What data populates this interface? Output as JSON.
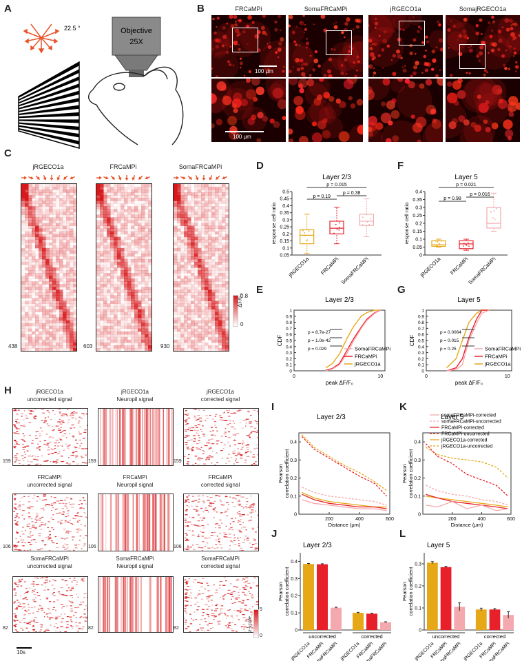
{
  "panels": {
    "A": "A",
    "B": "B",
    "C": "C",
    "D": "D",
    "E": "E",
    "F": "F",
    "G": "G",
    "H": "H",
    "I": "I",
    "J": "J",
    "K": "K",
    "L": "L"
  },
  "panelA": {
    "angle": "22.5 °",
    "objective_line1": "Objective",
    "objective_line2": "25X"
  },
  "panelB": {
    "labels": [
      "FRCaMPi",
      "SomaFRCaMPi",
      "jRGECO1a",
      "SomajRGECO1a"
    ],
    "scale_top": "100 μm",
    "scale_bottom": "100 μm"
  },
  "panelC": {
    "titles": [
      "jRGECO1a",
      "FRCaMPi",
      "SomaFRCaMPi"
    ],
    "counts": [
      "438",
      "603",
      "930"
    ],
    "colorbar_max": "0.8",
    "colorbar_min": "0",
    "colorbar_label": "ΔF/F₀"
  },
  "panelD": {
    "title": "Layer 2/3",
    "ylabel": "response cell ratio",
    "yticks": [
      "0.5",
      "0.45",
      "0.4",
      "0.35",
      "0.3",
      "0.25",
      "0.2",
      "0.15",
      "0.1",
      "0.05"
    ],
    "xlabels": [
      "jRGECO1a",
      "FRCaMPi",
      "SomaFRCaMPi"
    ],
    "pvals": [
      "p = 0.015",
      "p = 0.19",
      "p = 0.38"
    ]
  },
  "panelF": {
    "title": "Layer 5",
    "ylabel": "response cell ratio",
    "yticks": [
      "0.4",
      "0.35",
      "0.3",
      "0.25",
      "0.2",
      "0.15",
      "0.1",
      "0.05",
      "0"
    ],
    "xlabels": [
      "jRGECO1a",
      "FRCaMPi",
      "SomaFRCaMPi"
    ],
    "pvals": [
      "p = 0.021",
      "p = 0.98",
      "p = 0.016"
    ]
  },
  "panelE": {
    "title": "Layer 2/3",
    "ylabel": "CDF",
    "xlabel": "peak ΔF/F₀",
    "yticks": [
      "1",
      "0.9",
      "0.8",
      "0.7",
      "0.6",
      "0.5",
      "0.4",
      "0.3",
      "0.2",
      "0.1",
      "0"
    ],
    "xticks": [
      "0",
      "10"
    ],
    "pvals": [
      "p = 8.7e-27",
      "p = 1.0e-42",
      "p = 0.029"
    ],
    "legend": [
      "SomaFRCaMPi",
      "FRCaMPi",
      "jRGECO1a"
    ]
  },
  "panelG": {
    "title": "Layer 5",
    "ylabel": "CDF",
    "xlabel": "peak ΔF/F₀",
    "yticks": [
      "1",
      "0.9",
      "0.8",
      "0.7",
      "0.6",
      "0.5",
      "0.4",
      "0.3",
      "0.2",
      "0.1",
      "0"
    ],
    "xticks": [
      "0",
      "10"
    ],
    "pvals": [
      "p = 0.0064",
      "p = 0.015",
      "p = 0.25"
    ],
    "legend": [
      "SomaFRCaMPi",
      "FRCaMPi",
      "jRGECO1a"
    ]
  },
  "panelH": {
    "rows": [
      {
        "name": "jRGECO1a",
        "count": "159"
      },
      {
        "name": "FRCaMPi",
        "count": "106"
      },
      {
        "name": "SomaFRCaMPi",
        "count": "82"
      }
    ],
    "col_labels": [
      "uncorrected signal",
      "Neuropil signal",
      "corrected signal"
    ],
    "time_scale": "10s",
    "colorbar_max": "5",
    "colorbar_min": "0",
    "colorbar_label": "z-score"
  },
  "panelI": {
    "title": "Layer 2/3",
    "ylabel_line1": "Pearson",
    "ylabel_line2": "correlation coefficient",
    "xlabel": "Distance (μm)",
    "yticks": [
      "0.4",
      "0.3",
      "0.2",
      "0.1",
      "0"
    ],
    "xticks": [
      "200",
      "400",
      "600"
    ]
  },
  "panelK": {
    "title": "Layer 5",
    "ylabel_line1": "Pearson",
    "ylabel_line2": "correlation coefficient",
    "xlabel": "Distance (μm)",
    "yticks": [
      "0.4",
      "0.3",
      "0.2",
      "0.1",
      "0"
    ],
    "xticks": [
      "200",
      "400",
      "600"
    ],
    "legend": [
      "somaFRCaMPi-corrected",
      "somaFRCaMPi-uncorrected",
      "FRCaMPi-corrected",
      "FRCaMPi-uncorrected",
      "jRGECO1a-corrected",
      "jRGECO1a-uncorrected"
    ]
  },
  "panelJ": {
    "title": "Layer 2/3",
    "ylabel_line1": "Pearson",
    "ylabel_line2": "correlation coefficient",
    "yticks": [
      "0.4",
      "0.3",
      "0.2",
      "0.1",
      "0"
    ],
    "group_labels": [
      "uncorrected",
      "corrected"
    ],
    "xlabels": [
      "jRGECO1a",
      "FRCaMPi",
      "somaFRCaMPi",
      "jRGECO1a",
      "FRCaMPi",
      "somaFRCaMPi"
    ]
  },
  "panelL": {
    "title": "Layer 5",
    "ylabel_line1": "Pearson",
    "ylabel_line2": "correlation coefficient",
    "yticks": [
      "0.3",
      "0.2",
      "0.1",
      "0"
    ],
    "group_labels": [
      "uncorrected",
      "corrected"
    ],
    "xlabels": [
      "jRGECO1a",
      "FRCaMPi",
      "somaFRCaMPi",
      "jRGECO1a",
      "FRCaMPi",
      "somaFRCaMPi"
    ]
  },
  "colors": {
    "jrgeco": "#E6A817",
    "frcampi": "#E8202A",
    "soma": "#F4A9AE",
    "heat": "#D7191C"
  },
  "chart_data": [
    {
      "type": "box",
      "panel": "D",
      "categories": [
        "jRGECO1a",
        "FRCaMPi",
        "SomaFRCaMPi"
      ],
      "ylim": [
        0.05,
        0.5
      ],
      "boxes": [
        {
          "min": 0.06,
          "q1": 0.13,
          "median": 0.19,
          "q3": 0.23,
          "max": 0.34
        },
        {
          "min": 0.13,
          "q1": 0.2,
          "median": 0.24,
          "q3": 0.29,
          "max": 0.39
        },
        {
          "min": 0.18,
          "q1": 0.26,
          "median": 0.29,
          "q3": 0.34,
          "max": 0.45
        }
      ]
    },
    {
      "type": "box",
      "panel": "F",
      "categories": [
        "jRGECO1a",
        "FRCaMPi",
        "SomaFRCaMPi"
      ],
      "ylim": [
        0,
        0.4
      ],
      "boxes": [
        {
          "min": 0.05,
          "q1": 0.055,
          "median": 0.065,
          "q3": 0.09,
          "max": 0.1
        },
        {
          "min": 0.03,
          "q1": 0.04,
          "median": 0.07,
          "q3": 0.09,
          "max": 0.1
        },
        {
          "min": 0.15,
          "q1": 0.17,
          "median": 0.2,
          "q3": 0.3,
          "max": 0.39
        }
      ]
    },
    {
      "type": "bar",
      "panel": "J",
      "categories": [
        "jRGECO1a",
        "FRCaMPi",
        "somaFRCaMPi",
        "jRGECO1a",
        "FRCaMPi",
        "somaFRCaMPi"
      ],
      "values": [
        0.385,
        0.383,
        0.13,
        0.1,
        0.095,
        0.045
      ],
      "errors": [
        0.003,
        0.003,
        0.003,
        0.003,
        0.003,
        0.003
      ],
      "ylim": [
        0,
        0.45
      ]
    },
    {
      "type": "bar",
      "panel": "L",
      "categories": [
        "jRGECO1a",
        "FRCaMPi",
        "somaFRCaMPi",
        "jRGECO1a",
        "FRCaMPi",
        "somaFRCaMPi"
      ],
      "values": [
        0.305,
        0.285,
        0.105,
        0.093,
        0.093,
        0.068
      ],
      "errors": [
        0.005,
        0.004,
        0.018,
        0.006,
        0.004,
        0.015
      ],
      "ylim": [
        0,
        0.35
      ]
    },
    {
      "type": "line",
      "panel": "I",
      "xlim": [
        0,
        600
      ],
      "ylim": [
        0,
        0.45
      ],
      "x": [
        20,
        100,
        200,
        300,
        400,
        500,
        580
      ],
      "series": [
        {
          "name": "jRGECO1a-uncorrected",
          "values": [
            0.44,
            0.37,
            0.32,
            0.27,
            0.23,
            0.18,
            0.13
          ]
        },
        {
          "name": "FRCaMPi-uncorrected",
          "values": [
            0.43,
            0.36,
            0.31,
            0.26,
            0.21,
            0.17,
            0.1
          ]
        },
        {
          "name": "somaFRCaMPi-uncorrected",
          "values": [
            0.15,
            0.12,
            0.1,
            0.09,
            0.08,
            0.07,
            0.05
          ]
        },
        {
          "name": "jRGECO1a-corrected",
          "values": [
            0.12,
            0.09,
            0.07,
            0.06,
            0.05,
            0.04,
            0.04
          ]
        },
        {
          "name": "FRCaMPi-corrected",
          "values": [
            0.11,
            0.08,
            0.06,
            0.05,
            0.04,
            0.04,
            0.03
          ]
        },
        {
          "name": "somaFRCaMPi-corrected",
          "values": [
            0.08,
            0.06,
            0.05,
            0.04,
            0.03,
            0.03,
            0.02
          ]
        }
      ]
    },
    {
      "type": "line",
      "panel": "K",
      "xlim": [
        0,
        600
      ],
      "ylim": [
        0,
        0.45
      ],
      "x": [
        20,
        100,
        200,
        300,
        400,
        500,
        580
      ],
      "series": [
        {
          "name": "jRGECO1a-uncorrected",
          "values": [
            0.37,
            0.33,
            0.31,
            0.3,
            0.29,
            0.26,
            0.2
          ]
        },
        {
          "name": "FRCaMPi-uncorrected",
          "values": [
            0.39,
            0.32,
            0.28,
            0.22,
            0.19,
            0.16,
            0.1
          ]
        },
        {
          "name": "somaFRCaMPi-uncorrected",
          "values": [
            0.16,
            0.13,
            0.11,
            0.1,
            0.08,
            0.07,
            0.05
          ]
        },
        {
          "name": "jRGECO1a-corrected",
          "values": [
            0.1,
            0.09,
            0.08,
            0.07,
            0.06,
            0.05,
            0.04
          ]
        },
        {
          "name": "FRCaMPi-corrected",
          "values": [
            0.11,
            0.09,
            0.07,
            0.06,
            0.05,
            0.04,
            0.03
          ]
        },
        {
          "name": "somaFRCaMPi-corrected",
          "values": [
            0.05,
            0.04,
            0.07,
            0.03,
            0.05,
            0.02,
            0.03
          ]
        }
      ]
    },
    {
      "type": "line",
      "panel": "E",
      "xlim": [
        0,
        10
      ],
      "ylim": [
        0,
        1
      ],
      "x": [
        0.5,
        0.7,
        1,
        1.5,
        2,
        3,
        4,
        6,
        8
      ],
      "series": [
        {
          "name": "jRGECO1a",
          "values": [
            0.05,
            0.12,
            0.28,
            0.55,
            0.72,
            0.9,
            0.96,
            1,
            1
          ]
        },
        {
          "name": "FRCaMPi",
          "values": [
            0.01,
            0.04,
            0.12,
            0.35,
            0.52,
            0.72,
            0.85,
            0.96,
            1
          ]
        },
        {
          "name": "SomaFRCaMPi",
          "values": [
            0.0,
            0.03,
            0.1,
            0.3,
            0.48,
            0.7,
            0.83,
            0.95,
            1
          ]
        }
      ]
    },
    {
      "type": "line",
      "panel": "G",
      "xlim": [
        0,
        10
      ],
      "ylim": [
        0,
        1
      ],
      "x": [
        0.3,
        0.5,
        0.7,
        1,
        1.5,
        2,
        3
      ],
      "series": [
        {
          "name": "jRGECO1a",
          "values": [
            0.05,
            0.2,
            0.5,
            0.8,
            0.95,
            1,
            1
          ]
        },
        {
          "name": "FRCaMPi",
          "values": [
            0.0,
            0.05,
            0.2,
            0.55,
            0.85,
            1,
            1
          ]
        },
        {
          "name": "SomaFRCaMPi",
          "values": [
            0.0,
            0.02,
            0.1,
            0.5,
            0.78,
            0.95,
            1
          ]
        }
      ]
    }
  ]
}
